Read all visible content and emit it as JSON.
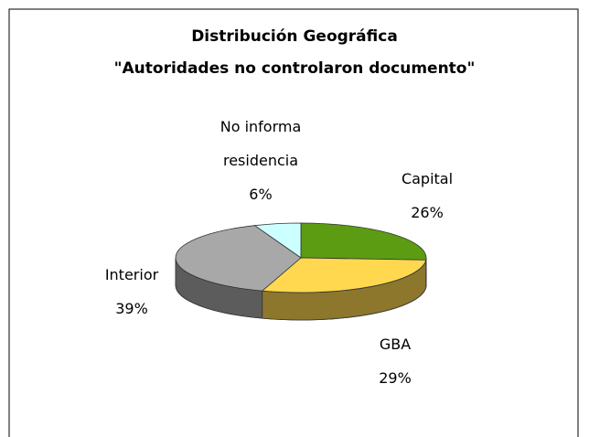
{
  "chart_data": {
    "type": "pie",
    "title": "Distribución Geográfica",
    "subtitle": "\"Autoridades no controlaron documento\"",
    "categories": [
      "Capital",
      "GBA",
      "Interior",
      "No informa residencia"
    ],
    "values": [
      26,
      29,
      39,
      6
    ],
    "value_labels": [
      "26%",
      "29%",
      "39%",
      "6%"
    ],
    "colors": [
      "#5c9c12",
      "#ffd850",
      "#a8a8a8",
      "#ccffff"
    ]
  }
}
